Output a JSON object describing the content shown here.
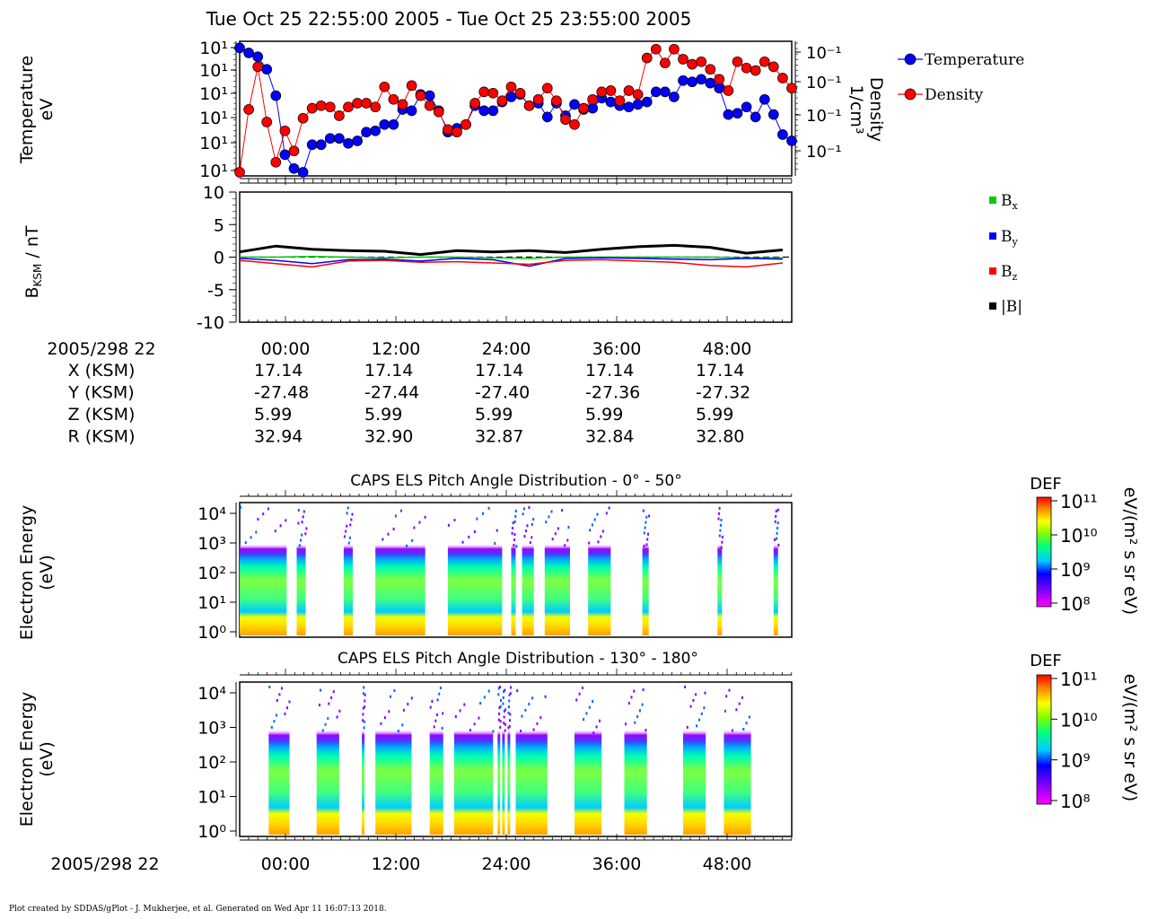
{
  "title": "Tue Oct 25 22:55:00 2005 - Tue Oct 25 23:55:00 2005",
  "footer": "Plot created by SDDAS/gPlot - J. Mukherjee, et al.  Generated on Wed Apr 11 16:07:13 2018.",
  "colors": {
    "temperature": "#0000ff",
    "density": "#ff0000",
    "bx": "#00cc00",
    "by": "#0000ff",
    "bz": "#ff0000",
    "bmag": "#000000"
  },
  "chart_data": [
    {
      "id": "plasma",
      "type": "line",
      "ylabel_lines": [
        "Temperature",
        "eV"
      ],
      "y2label_lines": [
        "Density",
        "1/cm³"
      ],
      "left_ticks": [
        "10¹",
        "10¹",
        "10¹",
        "10¹",
        "10¹",
        "10¹"
      ],
      "right_ticks": [
        "10⁻¹",
        "10⁻¹",
        "10⁻¹",
        "10⁻¹"
      ],
      "ylim": [
        0,
        1
      ],
      "legend_placement": "right",
      "series": [
        {
          "name": "Temperature",
          "x": [
            0,
            1,
            2,
            3,
            4,
            5,
            6,
            7,
            8,
            9,
            10,
            11,
            12,
            13,
            14,
            15,
            16,
            17,
            18,
            19,
            20,
            21,
            22,
            23,
            24,
            25,
            26,
            27,
            28,
            29,
            30,
            31,
            32,
            33,
            34,
            35,
            36,
            37,
            38,
            39,
            40,
            41,
            42,
            43,
            44,
            45,
            46,
            47,
            48,
            49,
            50,
            51,
            52,
            53,
            54,
            55,
            56,
            57,
            58,
            59,
            60,
            61
          ],
          "values": [
            0.99,
            0.95,
            0.92,
            0.82,
            0.61,
            0.14,
            0.03,
            0.0,
            0.22,
            0.22,
            0.27,
            0.27,
            0.23,
            0.25,
            0.32,
            0.33,
            0.38,
            0.38,
            0.5,
            0.49,
            0.62,
            0.61,
            0.49,
            0.32,
            0.35,
            0.38,
            0.53,
            0.49,
            0.49,
            0.56,
            0.6,
            0.62,
            0.53,
            0.55,
            0.44,
            0.55,
            0.45,
            0.54,
            0.5,
            0.51,
            0.59,
            0.56,
            0.53,
            0.52,
            0.54,
            0.56,
            0.64,
            0.64,
            0.6,
            0.73,
            0.72,
            0.74,
            0.71,
            0.67,
            0.46,
            0.47,
            0.52,
            0.44,
            0.58,
            0.46,
            0.3,
            0.25
          ],
          "color": "#0000ff"
        },
        {
          "name": "Density",
          "x": [
            0,
            1,
            2,
            3,
            4,
            5,
            6,
            7,
            8,
            9,
            10,
            11,
            12,
            13,
            14,
            15,
            16,
            17,
            18,
            19,
            20,
            21,
            22,
            23,
            24,
            25,
            26,
            27,
            28,
            29,
            30,
            31,
            32,
            33,
            34,
            35,
            36,
            37,
            38,
            39,
            40,
            41,
            42,
            43,
            44,
            45,
            46,
            47,
            48,
            49,
            50,
            51,
            52,
            53,
            54,
            55,
            56,
            57,
            58,
            59,
            60,
            61
          ],
          "values": [
            0.0,
            0.5,
            0.84,
            0.4,
            0.08,
            0.33,
            0.17,
            0.43,
            0.51,
            0.53,
            0.52,
            0.45,
            0.52,
            0.55,
            0.55,
            0.52,
            0.68,
            0.58,
            0.54,
            0.69,
            0.61,
            0.53,
            0.48,
            0.34,
            0.32,
            0.38,
            0.55,
            0.64,
            0.63,
            0.57,
            0.68,
            0.63,
            0.53,
            0.58,
            0.67,
            0.57,
            0.42,
            0.38,
            0.51,
            0.58,
            0.64,
            0.65,
            0.57,
            0.65,
            0.62,
            0.91,
            0.98,
            0.87,
            0.98,
            0.9,
            0.86,
            0.88,
            0.82,
            0.74,
            0.65,
            0.88,
            0.83,
            0.81,
            0.88,
            0.84,
            0.75,
            0.67
          ],
          "color": "#ff0000"
        }
      ]
    },
    {
      "id": "mag",
      "type": "line",
      "ylabel": "B",
      "ylabel_sub": "KSM",
      "ylabel_suffix": " / nT",
      "yticks": [
        10,
        5,
        0,
        -5,
        -10
      ],
      "ylim": [
        -10,
        10
      ],
      "zero_line": true,
      "legend_placement": "right",
      "series": [
        {
          "name": "B",
          "sub": "x",
          "color": "#00cc00",
          "x": [
            0,
            4,
            8,
            12,
            16,
            20,
            24,
            28,
            32,
            36,
            40,
            44,
            48,
            52,
            56,
            60
          ],
          "values": [
            0.0,
            0.0,
            0.1,
            0.0,
            -0.1,
            0.0,
            0.0,
            -0.1,
            -0.2,
            0.0,
            0.0,
            0.0,
            0.0,
            0.0,
            -0.1,
            -0.1
          ]
        },
        {
          "name": "B",
          "sub": "y",
          "color": "#0000ff",
          "x": [
            0,
            4,
            8,
            12,
            16,
            20,
            24,
            28,
            32,
            36,
            40,
            44,
            48,
            52,
            56,
            60
          ],
          "values": [
            -0.2,
            -0.5,
            -1.0,
            -0.4,
            -0.3,
            -0.6,
            -0.2,
            -0.4,
            -1.4,
            -0.2,
            -0.1,
            -0.2,
            -0.3,
            -0.4,
            -0.2,
            -0.3
          ]
        },
        {
          "name": "B",
          "sub": "z",
          "color": "#ff0000",
          "x": [
            0,
            4,
            8,
            12,
            16,
            20,
            24,
            28,
            32,
            36,
            40,
            44,
            48,
            52,
            56,
            60
          ],
          "values": [
            -0.5,
            -1.0,
            -1.5,
            -0.6,
            -0.5,
            -0.8,
            -0.7,
            -0.9,
            -1.1,
            -0.5,
            -0.4,
            -0.6,
            -0.8,
            -1.3,
            -1.5,
            -0.9
          ]
        },
        {
          "name": "|B|",
          "sub": "",
          "color": "#000000",
          "x": [
            0,
            4,
            8,
            12,
            16,
            20,
            24,
            28,
            32,
            36,
            40,
            44,
            48,
            52,
            56,
            60
          ],
          "values": [
            0.8,
            1.7,
            1.2,
            1.0,
            0.9,
            0.4,
            1.0,
            0.8,
            1.0,
            0.7,
            1.2,
            1.6,
            1.8,
            1.5,
            0.6,
            1.1
          ]
        }
      ]
    },
    {
      "id": "pad1",
      "type": "heatmap",
      "title": "CAPS ELS Pitch Angle Distribution - 0° - 50°",
      "ylabel_lines": [
        "Electron Energy",
        "(eV)"
      ],
      "yticks": [
        "10⁴",
        "10³",
        "10²",
        "10¹",
        "10⁰"
      ],
      "colorbar": {
        "label": "DEF",
        "units": "eV/(m² s sr eV)",
        "ticks": [
          "10¹¹",
          "10¹⁰",
          "10⁹",
          "10⁸"
        ]
      },
      "blocks": [
        [
          0,
          5.2
        ],
        [
          6.3,
          7.3
        ],
        [
          11.5,
          12.5
        ],
        [
          15,
          20.5
        ],
        [
          23,
          29
        ],
        [
          30,
          30.5
        ],
        [
          31.2,
          32.5
        ],
        [
          33.7,
          36.5
        ],
        [
          38.5,
          41
        ],
        [
          44.5,
          45.2
        ],
        [
          52.8,
          53.3
        ],
        [
          59,
          59.5
        ]
      ]
    },
    {
      "id": "pad2",
      "type": "heatmap",
      "title": "CAPS ELS Pitch Angle Distribution - 130° - 180°",
      "ylabel_lines": [
        "Electron Energy",
        "(eV)"
      ],
      "yticks": [
        "10⁴",
        "10³",
        "10²",
        "10¹",
        "10⁰"
      ],
      "colorbar": {
        "label": "DEF",
        "units": "eV/(m² s sr eV)",
        "ticks": [
          "10¹¹",
          "10¹⁰",
          "10⁹",
          "10⁸"
        ]
      },
      "blocks": [
        [
          3.2,
          5.5
        ],
        [
          8.5,
          11
        ],
        [
          13.5,
          13.8
        ],
        [
          15,
          19
        ],
        [
          21,
          22.5
        ],
        [
          23.7,
          28
        ],
        [
          28.5,
          28.8
        ],
        [
          29,
          29.3
        ],
        [
          29.6,
          29.9
        ],
        [
          30.5,
          34
        ],
        [
          37,
          40
        ],
        [
          42.5,
          45
        ],
        [
          49,
          51.5
        ],
        [
          53.5,
          56.5
        ]
      ]
    }
  ],
  "time_axis": {
    "tick_labels": [
      "00:00",
      "12:00",
      "24:00",
      "36:00",
      "48:00"
    ],
    "label_col": "2005/298 22"
  },
  "ephemeris": {
    "rows": [
      {
        "label": "X (KSM)",
        "values": [
          "17.14",
          "17.14",
          "17.14",
          "17.14",
          "17.14"
        ]
      },
      {
        "label": "Y (KSM)",
        "values": [
          "-27.48",
          "-27.44",
          "-27.40",
          "-27.36",
          "-27.32"
        ]
      },
      {
        "label": "Z (KSM)",
        "values": [
          "5.99",
          "5.99",
          "5.99",
          "5.99",
          "5.99"
        ]
      },
      {
        "label": "R (KSM)",
        "values": [
          "32.94",
          "32.90",
          "32.87",
          "32.84",
          "32.80"
        ]
      }
    ]
  }
}
